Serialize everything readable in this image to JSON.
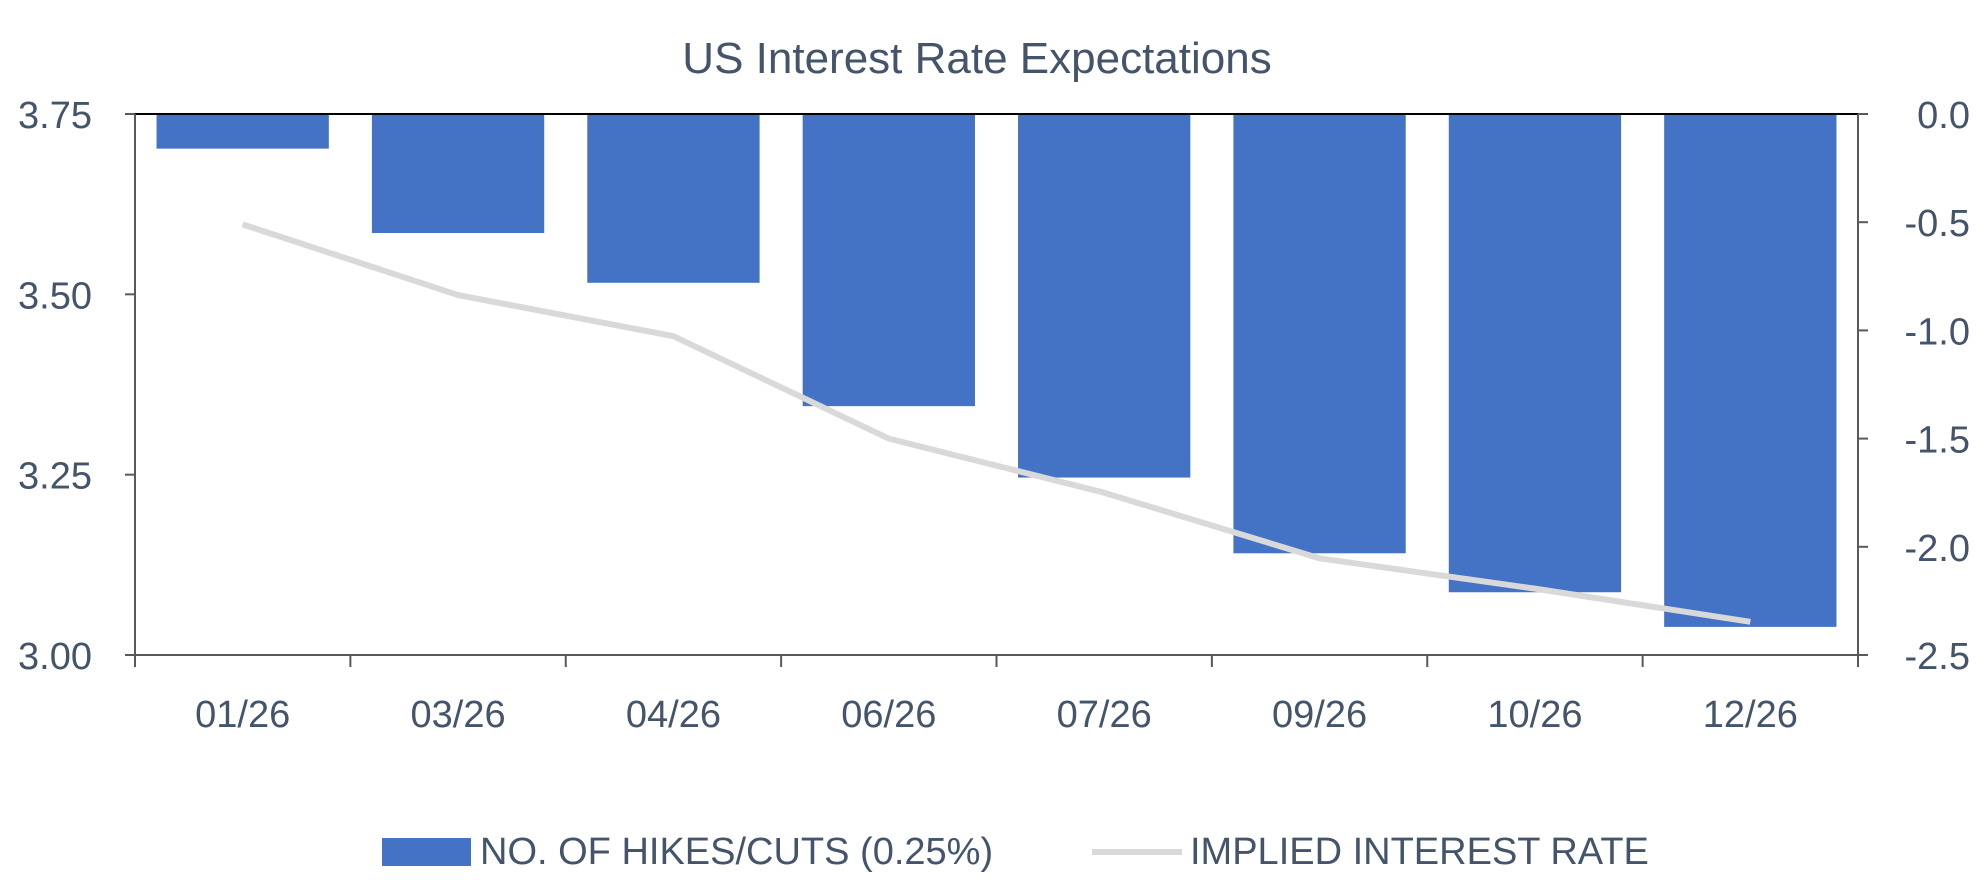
{
  "chart_data": {
    "type": "bar",
    "title": "US Interest Rate Expectations",
    "categories": [
      "01/26",
      "03/26",
      "04/26",
      "06/26",
      "07/26",
      "09/26",
      "10/26",
      "12/26"
    ],
    "series": [
      {
        "name": "NO. OF HIKES/CUTS (0.25%)",
        "type": "bar",
        "axis": "right",
        "color": "#4472c4",
        "values": [
          -0.16,
          -0.55,
          -0.78,
          -1.35,
          -1.68,
          -2.03,
          -2.21,
          -2.37
        ]
      },
      {
        "name": "IMPLIED INTEREST RATE",
        "type": "line",
        "axis": "left",
        "color": "#d9d9d9",
        "values": [
          3.597,
          3.499,
          3.442,
          3.3,
          3.225,
          3.134,
          3.092,
          3.046
        ]
      }
    ],
    "y_left": {
      "ylim": [
        3.0,
        3.75
      ],
      "ticks": [
        "3.00",
        "3.25",
        "3.50",
        "3.75"
      ],
      "tick_values": [
        3.0,
        3.25,
        3.5,
        3.75
      ]
    },
    "y_right": {
      "ylim": [
        -2.5,
        0.0
      ],
      "ticks": [
        "0.0",
        "-0.5",
        "-1.0",
        "-1.5",
        "-2.0",
        "-2.5"
      ],
      "tick_values": [
        0.0,
        -0.5,
        -1.0,
        -1.5,
        -2.0,
        -2.5
      ]
    },
    "grid": false,
    "legend": "bottom"
  },
  "colors": {
    "text": "#44546a",
    "axis": "#595959",
    "bar": "#4472c4",
    "line": "#d9d9d9"
  }
}
